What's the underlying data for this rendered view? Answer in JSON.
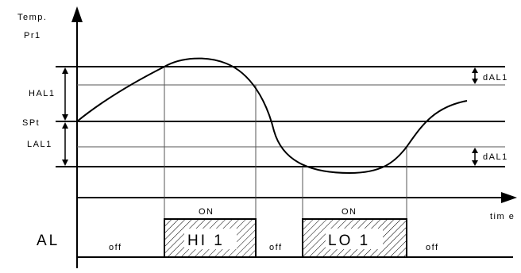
{
  "axis": {
    "y_title_line1": "Temp.",
    "y_title_line2": "Pr1",
    "x_title": "tim e"
  },
  "levels": {
    "hal": "HAL1",
    "spt": "SPt",
    "lal": "LAL1",
    "dal_top": "dAL1",
    "dal_bottom": "dAL1"
  },
  "alarm": {
    "row_label": "AL",
    "on_label_1": "ON",
    "on_label_2": "ON",
    "box_hi": "HI 1",
    "box_lo": "LO 1",
    "off_1": "off",
    "off_2": "off",
    "off_3": "off"
  }
}
